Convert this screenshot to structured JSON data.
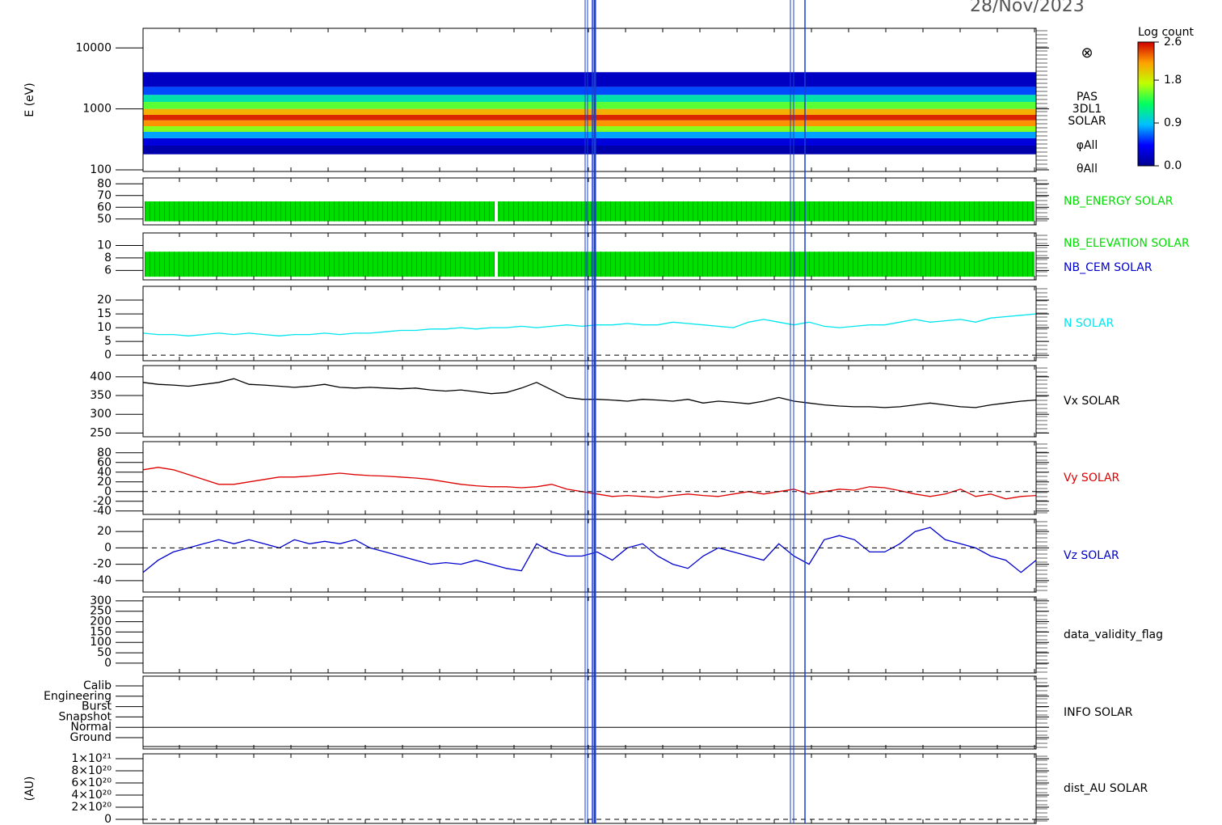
{
  "chart_data": [
    {
      "type": "heatmap",
      "date": "28/Nov/2023",
      "y_label": "E (eV)",
      "log_y": true,
      "ylim": [
        94,
        21000
      ],
      "yticks": [
        100,
        1000,
        10000
      ],
      "energy_edges": [
        180,
        250,
        330,
        420,
        520,
        650,
        800,
        1000,
        1300,
        1700,
        2300,
        4000
      ],
      "log_counts": [
        0.1,
        0.3,
        0.8,
        1.6,
        2.2,
        2.5,
        2.1,
        1.5,
        1.1,
        0.6,
        0.2
      ],
      "colorbar_title": "Log count",
      "zlim": [
        0,
        2.6
      ],
      "zticks": [
        {
          "value": 0,
          "label": "0.0"
        },
        0.9,
        1.8,
        2.6
      ],
      "colormap": [
        "#000090",
        "#0000ff",
        "#00c0ff",
        "#00ff60",
        "#c0ff00",
        "#ffa000",
        "#d00000"
      ],
      "symbol": "⊗",
      "side_labels": [
        "PAS",
        "3DL1",
        "SOLAR",
        "φAll",
        "θAll"
      ]
    },
    {
      "type": "bar_range",
      "ylim": [
        45,
        85
      ],
      "yticks": [
        50,
        60,
        70,
        80
      ],
      "series": [
        {
          "name": "NB_ENERGY SOLAR",
          "color": "#00dd00",
          "low": 48,
          "high": 65
        }
      ]
    },
    {
      "type": "bar_range",
      "ylim": [
        4.5,
        12
      ],
      "yticks": [
        6,
        8,
        10
      ],
      "series": [
        {
          "name": "NB_ELEVATION SOLAR",
          "color": "#00dd00",
          "low": 5,
          "high": 9
        },
        {
          "name": "NB_CEM SOLAR",
          "color": "#0000cc"
        }
      ]
    },
    {
      "type": "line",
      "ylim": [
        -2,
        25
      ],
      "yticks": [
        0,
        5,
        10,
        15,
        20
      ],
      "zero_line": true,
      "series": [
        {
          "name": "N SOLAR",
          "color": "#00e5ee",
          "values": [
            8,
            7.5,
            7.5,
            7,
            7.5,
            8,
            7.5,
            8,
            7.5,
            7,
            7.5,
            7.5,
            8,
            7.5,
            8,
            8,
            8.5,
            9,
            9,
            9.5,
            9.5,
            10,
            9.5,
            10,
            10,
            10.5,
            10,
            10.5,
            11,
            10.5,
            11,
            11,
            11.5,
            11,
            11,
            12,
            11.5,
            11,
            10.5,
            10,
            12,
            13,
            12,
            11,
            12,
            10.5,
            10,
            10.5,
            11,
            11,
            12,
            13,
            12,
            12.5,
            13,
            12,
            13.5,
            14,
            14.5,
            15
          ]
        }
      ]
    },
    {
      "type": "line",
      "ylim": [
        240,
        430
      ],
      "yticks": [
        250,
        300,
        350,
        400
      ],
      "series": [
        {
          "name": "Vx SOLAR",
          "color": "#000000",
          "values": [
            385,
            380,
            378,
            375,
            380,
            385,
            395,
            380,
            378,
            375,
            372,
            375,
            380,
            372,
            370,
            372,
            370,
            368,
            370,
            365,
            362,
            365,
            360,
            355,
            358,
            370,
            385,
            365,
            345,
            340,
            340,
            338,
            335,
            340,
            338,
            335,
            340,
            330,
            335,
            332,
            328,
            335,
            345,
            335,
            330,
            325,
            322,
            320,
            320,
            318,
            320,
            325,
            330,
            325,
            320,
            318,
            325,
            330,
            335,
            338
          ]
        }
      ]
    },
    {
      "type": "line",
      "ylim": [
        -47,
        103
      ],
      "yticks": [
        -40,
        -20,
        0,
        20,
        40,
        60,
        80
      ],
      "zero_line": true,
      "series": [
        {
          "name": "Vy SOLAR",
          "color": "#dd0000",
          "values": [
            45,
            50,
            45,
            35,
            25,
            15,
            15,
            20,
            25,
            30,
            30,
            32,
            35,
            38,
            35,
            33,
            32,
            30,
            28,
            25,
            20,
            15,
            12,
            10,
            10,
            8,
            10,
            15,
            5,
            0,
            -5,
            -10,
            -8,
            -10,
            -12,
            -8,
            -5,
            -8,
            -10,
            -5,
            0,
            -5,
            0,
            5,
            -5,
            0,
            5,
            3,
            10,
            8,
            2,
            -5,
            -10,
            -5,
            5,
            -10,
            -5,
            -15,
            -10,
            -8
          ]
        }
      ]
    },
    {
      "type": "line",
      "ylim": [
        -54,
        35
      ],
      "yticks": [
        -40,
        -20,
        0,
        20
      ],
      "zero_line": true,
      "series": [
        {
          "name": "Vz SOLAR",
          "color": "#0000cc",
          "values": [
            -30,
            -15,
            -5,
            0,
            5,
            10,
            5,
            10,
            5,
            0,
            10,
            5,
            8,
            5,
            10,
            0,
            -5,
            -10,
            -15,
            -20,
            -18,
            -20,
            -15,
            -20,
            -25,
            -28,
            5,
            -5,
            -10,
            -10,
            -5,
            -15,
            0,
            5,
            -10,
            -20,
            -25,
            -10,
            0,
            -5,
            -10,
            -15,
            5,
            -10,
            -20,
            10,
            15,
            10,
            -5,
            -5,
            5,
            20,
            25,
            10,
            5,
            0,
            -10,
            -15,
            -30,
            -15
          ]
        }
      ]
    },
    {
      "type": "line",
      "ylim": [
        -47,
        319
      ],
      "yticks": [
        0,
        50,
        100,
        150,
        200,
        250,
        300
      ],
      "series": [
        {
          "name": "data_validity_flag",
          "color": "#000000"
        }
      ]
    },
    {
      "type": "category",
      "categories": [
        "Ground",
        "Normal",
        "Snapshot",
        "Burst",
        "Engineering",
        "Calib"
      ],
      "series": [
        {
          "name": "INFO SOLAR",
          "color": "#000000"
        }
      ]
    },
    {
      "type": "line",
      "y_label": "(AU)",
      "ylim": [
        -6.7e+19,
        1.08e+21
      ],
      "zero_line": true,
      "yticks": [
        0,
        {
          "value": 2e+20,
          "label": "2×10²⁰"
        },
        {
          "value": 4e+20,
          "label": "4×10²⁰"
        },
        {
          "value": 6e+20,
          "label": "6×10²⁰"
        },
        {
          "value": 8e+20,
          "label": "8×10²⁰"
        },
        {
          "value": 1e+21,
          "label": "1×10²¹"
        }
      ],
      "series": [
        {
          "name": "dist_AU SOLAR",
          "color": "#000000"
        }
      ]
    }
  ]
}
